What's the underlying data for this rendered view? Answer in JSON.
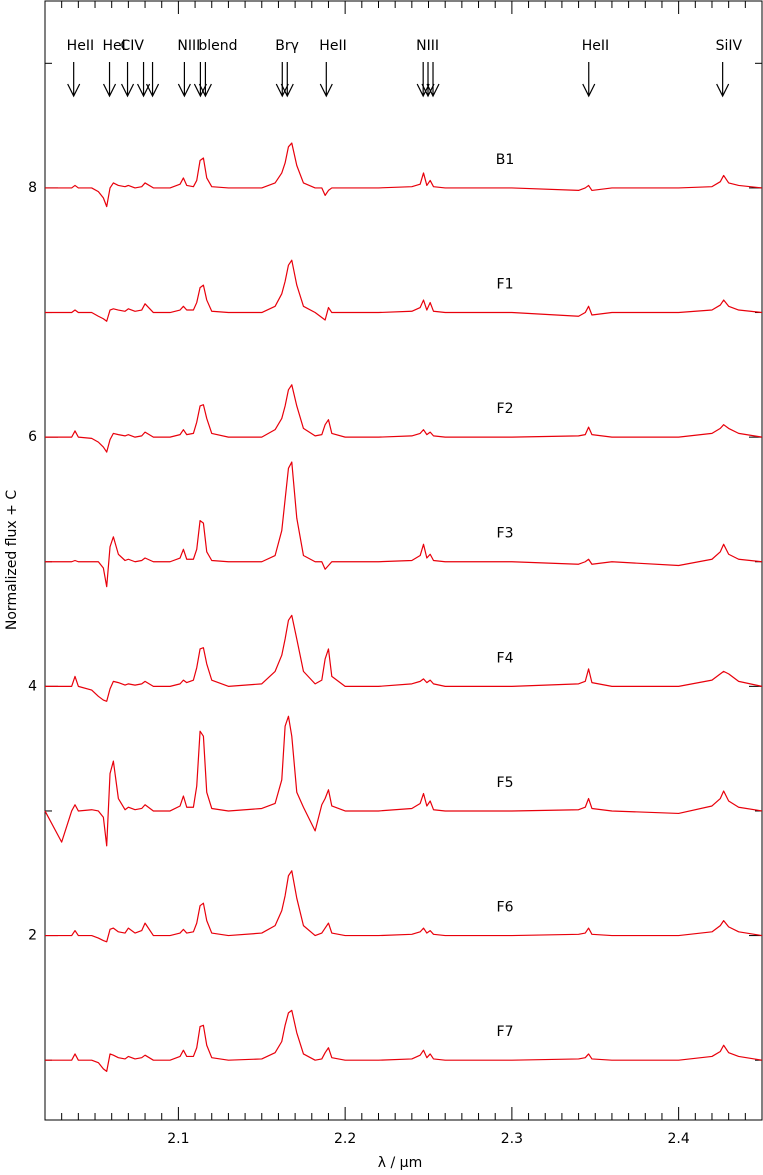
{
  "chart_data": {
    "type": "line",
    "xlabel": "λ / μm",
    "ylabel": "Normalized flux + C",
    "xlim": [
      2.02,
      2.45
    ],
    "ylim": [
      0.52,
      9.5
    ],
    "xticks": [
      2.1,
      2.2,
      2.3,
      2.4
    ],
    "xminor": [
      2.03,
      2.04,
      2.05,
      2.06,
      2.07,
      2.08,
      2.09,
      2.11,
      2.12,
      2.13,
      2.14,
      2.15,
      2.16,
      2.17,
      2.18,
      2.19,
      2.21,
      2.22,
      2.23,
      2.24,
      2.25,
      2.26,
      2.27,
      2.28,
      2.29,
      2.31,
      2.32,
      2.33,
      2.34,
      2.35,
      2.36,
      2.37,
      2.38,
      2.39,
      2.41,
      2.42,
      2.43,
      2.44
    ],
    "yticks": [
      2,
      4,
      6,
      8
    ],
    "yminor": [
      1,
      3,
      5,
      7,
      9
    ],
    "annotations": [
      {
        "text": "HeII",
        "lines": [
          2.0372
        ]
      },
      {
        "text": "HeI",
        "lines": [
          2.0587
        ]
      },
      {
        "text": "CIV",
        "lines": [
          2.0695,
          2.0791,
          2.0845
        ]
      },
      {
        "text": "NIII",
        "lines": [
          2.1036,
          2.1132
        ]
      },
      {
        "text": "blend",
        "lines": [
          2.1162
        ]
      },
      {
        "text": "Brγ",
        "lines": [
          2.1623,
          2.1653
        ]
      },
      {
        "text": "HeII",
        "lines": [
          2.1887
        ]
      },
      {
        "text": "NIII",
        "lines": [
          2.2468,
          2.2497,
          2.2527
        ]
      },
      {
        "text": "HeII",
        "lines": [
          2.3461
        ]
      },
      {
        "text": "SiIV",
        "lines": [
          2.4264
        ]
      }
    ],
    "x": [
      2.02,
      2.03,
      2.036,
      2.038,
      2.04,
      2.048,
      2.052,
      2.055,
      2.057,
      2.059,
      2.061,
      2.064,
      2.068,
      2.07,
      2.074,
      2.078,
      2.08,
      2.085,
      2.095,
      2.101,
      2.103,
      2.105,
      2.109,
      2.111,
      2.113,
      2.115,
      2.117,
      2.12,
      2.13,
      2.15,
      2.158,
      2.162,
      2.164,
      2.166,
      2.168,
      2.171,
      2.175,
      2.182,
      2.186,
      2.188,
      2.19,
      2.192,
      2.2,
      2.22,
      2.24,
      2.245,
      2.247,
      2.249,
      2.251,
      2.253,
      2.26,
      2.3,
      2.34,
      2.344,
      2.346,
      2.348,
      2.36,
      2.4,
      2.42,
      2.425,
      2.427,
      2.43,
      2.436,
      2.45
    ],
    "series": [
      {
        "name": "B1",
        "color": "#e8000b",
        "values": [
          8,
          8,
          8,
          8.02,
          8,
          8,
          7.97,
          7.92,
          7.85,
          8,
          8.04,
          8.02,
          8.01,
          8.02,
          8,
          8.01,
          8.04,
          8,
          8,
          8.03,
          8.08,
          8.02,
          8.01,
          8.06,
          8.22,
          8.24,
          8.08,
          8.01,
          8,
          8,
          8.04,
          8.12,
          8.2,
          8.33,
          8.36,
          8.18,
          8.04,
          8,
          8,
          7.94,
          7.98,
          8,
          8,
          8,
          8.01,
          8.03,
          8.12,
          8.02,
          8.06,
          8.01,
          8,
          8,
          7.98,
          8,
          8.02,
          7.98,
          8,
          8,
          8.01,
          8.05,
          8.1,
          8.04,
          8.02,
          8
        ]
      },
      {
        "name": "F1",
        "color": "#e8000b",
        "values": [
          7,
          7,
          7,
          7.02,
          7,
          7,
          6.97,
          6.95,
          6.93,
          7.02,
          7.03,
          7.02,
          7.01,
          7.03,
          7.01,
          7.02,
          7.07,
          7,
          7,
          7.02,
          7.05,
          7.02,
          7.02,
          7.08,
          7.2,
          7.22,
          7.1,
          7.01,
          7,
          7,
          7.05,
          7.15,
          7.25,
          7.38,
          7.42,
          7.22,
          7.05,
          7,
          6.96,
          6.94,
          7.04,
          7,
          7,
          7,
          7.01,
          7.04,
          7.1,
          7.02,
          7.08,
          7.01,
          7,
          7,
          6.97,
          7,
          7.05,
          6.98,
          7,
          7,
          7.02,
          7.06,
          7.1,
          7.05,
          7.02,
          7
        ]
      },
      {
        "name": "F2",
        "color": "#e8000b",
        "values": [
          6,
          6,
          6,
          6.05,
          6,
          5.99,
          5.96,
          5.92,
          5.88,
          5.98,
          6.03,
          6.02,
          6.01,
          6.02,
          6,
          6.01,
          6.04,
          6,
          6,
          6.02,
          6.06,
          6.02,
          6.03,
          6.12,
          6.25,
          6.26,
          6.15,
          6.03,
          6,
          6,
          6.06,
          6.15,
          6.25,
          6.38,
          6.42,
          6.25,
          6.07,
          6.01,
          6.02,
          6.1,
          6.14,
          6.03,
          6,
          6,
          6.01,
          6.03,
          6.06,
          6.02,
          6.04,
          6.01,
          6,
          6,
          6.01,
          6.02,
          6.08,
          6.02,
          6,
          6,
          6.03,
          6.07,
          6.1,
          6.07,
          6.03,
          6
        ]
      },
      {
        "name": "F3",
        "color": "#e8000b",
        "values": [
          5,
          5,
          5,
          5.01,
          5,
          5,
          5,
          4.95,
          4.8,
          5.12,
          5.2,
          5.06,
          5.01,
          5.02,
          5,
          5.01,
          5.03,
          5,
          5,
          5.03,
          5.1,
          5.02,
          5.02,
          5.1,
          5.33,
          5.31,
          5.08,
          5.01,
          5,
          5,
          5.05,
          5.25,
          5.5,
          5.75,
          5.8,
          5.35,
          5.05,
          5,
          5,
          4.94,
          4.97,
          5,
          5,
          5,
          5.01,
          5.05,
          5.14,
          5.03,
          5.06,
          5.01,
          5,
          5,
          4.98,
          5,
          5.02,
          4.98,
          5,
          4.97,
          5.02,
          5.08,
          5.14,
          5.06,
          5.02,
          5
        ]
      },
      {
        "name": "F4",
        "color": "#e8000b",
        "values": [
          4,
          4,
          4,
          4.08,
          4,
          3.97,
          3.92,
          3.89,
          3.88,
          3.98,
          4.04,
          4.03,
          4.01,
          4.02,
          4.01,
          4.02,
          4.04,
          4,
          4,
          4.02,
          4.05,
          4.03,
          4.05,
          4.15,
          4.3,
          4.31,
          4.18,
          4.05,
          4,
          4.02,
          4.12,
          4.25,
          4.38,
          4.53,
          4.57,
          4.38,
          4.12,
          4.02,
          4.05,
          4.22,
          4.3,
          4.08,
          4,
          4,
          4.02,
          4.04,
          4.06,
          4.03,
          4.05,
          4.02,
          4,
          4,
          4.02,
          4.04,
          4.14,
          4.03,
          4,
          4,
          4.05,
          4.1,
          4.12,
          4.1,
          4.04,
          4
        ]
      },
      {
        "name": "F5",
        "color": "#e8000b",
        "values": [
          3,
          2.75,
          3,
          3.05,
          3,
          3.01,
          3,
          2.95,
          2.72,
          3.3,
          3.4,
          3.1,
          3.01,
          3.03,
          3.01,
          3.02,
          3.05,
          3,
          3,
          3.04,
          3.12,
          3.03,
          3.03,
          3.2,
          3.64,
          3.6,
          3.15,
          3.02,
          3,
          3.02,
          3.06,
          3.25,
          3.68,
          3.76,
          3.6,
          3.15,
          3.03,
          2.84,
          3.05,
          3.1,
          3.17,
          3.04,
          3,
          3,
          3.02,
          3.06,
          3.14,
          3.04,
          3.08,
          3.01,
          3,
          3,
          3.01,
          3.03,
          3.1,
          3.02,
          3,
          2.98,
          3.04,
          3.1,
          3.16,
          3.08,
          3.03,
          3
        ]
      },
      {
        "name": "F6",
        "color": "#e8000b",
        "values": [
          2,
          2,
          2,
          2.04,
          2,
          2,
          1.98,
          1.96,
          1.95,
          2.05,
          2.06,
          2.03,
          2.02,
          2.06,
          2.02,
          2.04,
          2.1,
          2,
          2,
          2.02,
          2.05,
          2.02,
          2.03,
          2.1,
          2.24,
          2.26,
          2.12,
          2.02,
          2,
          2.02,
          2.08,
          2.2,
          2.32,
          2.48,
          2.52,
          2.3,
          2.08,
          2,
          2.02,
          2.06,
          2.1,
          2.02,
          2,
          2,
          2.01,
          2.03,
          2.06,
          2.02,
          2.04,
          2.01,
          2,
          2,
          2.01,
          2.02,
          2.06,
          2.01,
          2,
          2,
          2.03,
          2.08,
          2.12,
          2.07,
          2.03,
          2
        ]
      },
      {
        "name": "F7",
        "color": "#e8000b",
        "values": [
          1,
          1,
          1,
          1.05,
          1,
          1,
          0.98,
          0.93,
          0.91,
          1.05,
          1.04,
          1.02,
          1.01,
          1.03,
          1.01,
          1.02,
          1.04,
          1,
          1,
          1.03,
          1.08,
          1.03,
          1.03,
          1.1,
          1.27,
          1.28,
          1.12,
          1.02,
          1,
          1.01,
          1.06,
          1.15,
          1.28,
          1.38,
          1.4,
          1.22,
          1.05,
          1,
          1.01,
          1.06,
          1.1,
          1.02,
          1,
          1,
          1.01,
          1.04,
          1.08,
          1.02,
          1.05,
          1.01,
          1,
          1,
          1.01,
          1.02,
          1.05,
          1.01,
          1,
          1,
          1.03,
          1.07,
          1.12,
          1.06,
          1.03,
          1
        ]
      }
    ]
  }
}
